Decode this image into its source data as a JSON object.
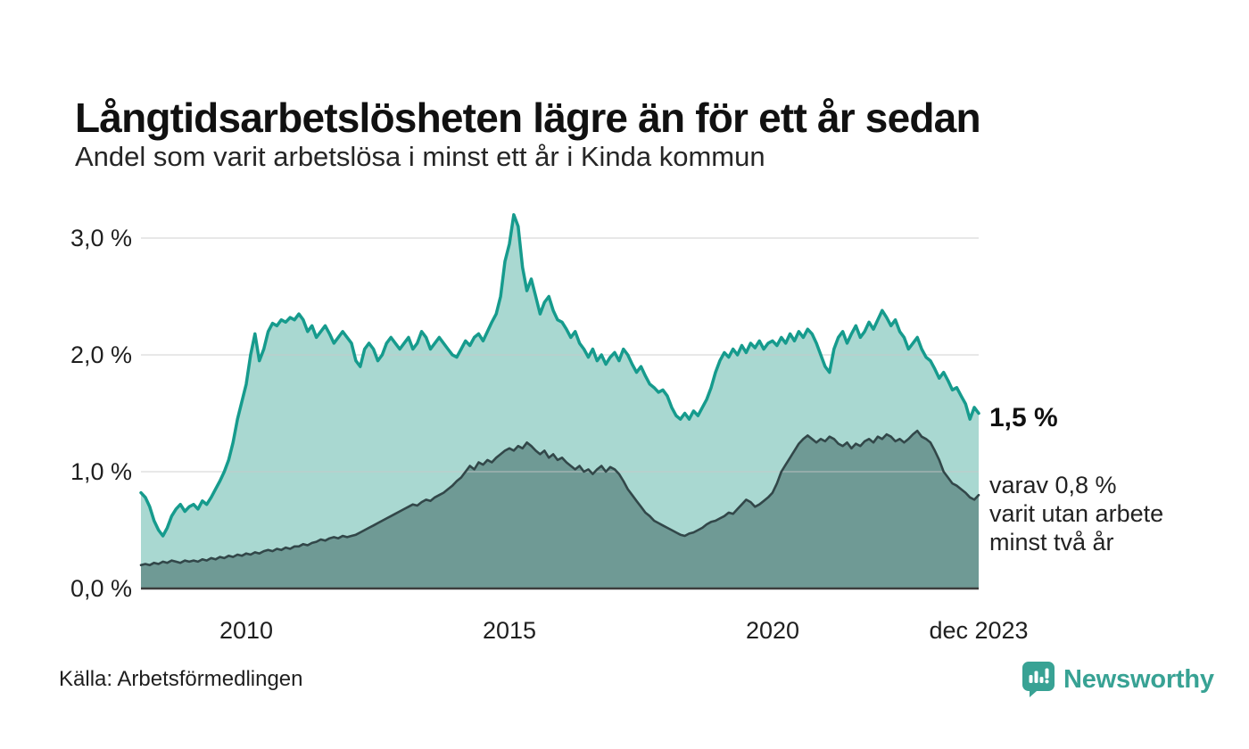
{
  "page": {
    "title": "Långtidsarbetslösheten lägre än för ett år sedan",
    "subtitle": "Andel som varit arbetslösa i minst ett år i Kinda kommun",
    "source": "Källa: Arbetsförmedlingen"
  },
  "brand": {
    "name": "Newsworthy",
    "color": "#38a294",
    "icon": "newsworthy-bar-chart-bubble-icon"
  },
  "annotation": {
    "value_label": "1,5 %",
    "detail_line1": "varav 0,8 %",
    "detail_line2": "varit utan arbete",
    "detail_line3": "minst två år"
  },
  "chart_data": {
    "type": "area",
    "title": "Långtidsarbetslösheten lägre än för ett år sedan",
    "subtitle": "Andel som varit arbetslösa i minst ett år i Kinda kommun",
    "x_unit": "month",
    "x_start": "2008-01",
    "x_end": "2023-12",
    "ylim": [
      0,
      3.3
    ],
    "grid": "horizontal",
    "legend_position": "none",
    "colors": {
      "grid_line": "#c9c9c9",
      "baseline": "#3d3d3d"
    },
    "y_ticks": [
      {
        "label": "3,0 %",
        "value": 3.0
      },
      {
        "label": "2,0 %",
        "value": 2.0
      },
      {
        "label": "1,0 %",
        "value": 1.0
      },
      {
        "label": "0,0 %",
        "value": 0.0
      }
    ],
    "x_ticks": [
      {
        "label": "2010",
        "month_index": 24
      },
      {
        "label": "2015",
        "month_index": 84
      },
      {
        "label": "2020",
        "month_index": 144
      },
      {
        "label": "dec 2023",
        "month_index": 191
      }
    ],
    "series": [
      {
        "name": "Andel arbetslösa minst ett år",
        "line_color": "#169b8d",
        "fill_color": "#a9d8d1",
        "latest_value_pct": 1.5,
        "values": [
          0.82,
          0.78,
          0.7,
          0.58,
          0.5,
          0.45,
          0.52,
          0.62,
          0.68,
          0.72,
          0.66,
          0.7,
          0.72,
          0.68,
          0.75,
          0.72,
          0.78,
          0.85,
          0.92,
          1.0,
          1.1,
          1.25,
          1.45,
          1.6,
          1.75,
          2.0,
          2.18,
          1.95,
          2.05,
          2.2,
          2.27,
          2.25,
          2.3,
          2.28,
          2.32,
          2.3,
          2.35,
          2.3,
          2.2,
          2.25,
          2.15,
          2.2,
          2.25,
          2.18,
          2.1,
          2.15,
          2.2,
          2.15,
          2.1,
          1.95,
          1.9,
          2.05,
          2.1,
          2.05,
          1.95,
          2.0,
          2.1,
          2.15,
          2.1,
          2.05,
          2.1,
          2.15,
          2.05,
          2.1,
          2.2,
          2.15,
          2.05,
          2.1,
          2.15,
          2.1,
          2.05,
          2.0,
          1.98,
          2.05,
          2.12,
          2.08,
          2.15,
          2.18,
          2.12,
          2.2,
          2.28,
          2.35,
          2.5,
          2.8,
          2.95,
          3.2,
          3.1,
          2.75,
          2.55,
          2.65,
          2.5,
          2.35,
          2.45,
          2.5,
          2.38,
          2.3,
          2.28,
          2.22,
          2.15,
          2.2,
          2.1,
          2.05,
          1.98,
          2.05,
          1.95,
          2.0,
          1.92,
          1.98,
          2.02,
          1.95,
          2.05,
          2.0,
          1.92,
          1.85,
          1.9,
          1.82,
          1.75,
          1.72,
          1.68,
          1.7,
          1.65,
          1.55,
          1.48,
          1.45,
          1.5,
          1.45,
          1.52,
          1.48,
          1.55,
          1.62,
          1.72,
          1.85,
          1.95,
          2.02,
          1.98,
          2.05,
          2.0,
          2.08,
          2.02,
          2.1,
          2.06,
          2.12,
          2.05,
          2.1,
          2.12,
          2.08,
          2.15,
          2.1,
          2.18,
          2.12,
          2.2,
          2.15,
          2.22,
          2.18,
          2.1,
          2.0,
          1.9,
          1.85,
          2.05,
          2.15,
          2.2,
          2.1,
          2.18,
          2.25,
          2.15,
          2.2,
          2.28,
          2.22,
          2.3,
          2.38,
          2.32,
          2.25,
          2.3,
          2.2,
          2.15,
          2.05,
          2.1,
          2.15,
          2.05,
          1.98,
          1.95,
          1.88,
          1.8,
          1.85,
          1.78,
          1.7,
          1.72,
          1.65,
          1.58,
          1.45,
          1.55,
          1.5
        ]
      },
      {
        "name": "varav utan arbete minst två år",
        "line_color": "#324749",
        "fill_color": "#6f9a95",
        "latest_value_pct": 0.8,
        "values": [
          0.2,
          0.21,
          0.2,
          0.22,
          0.21,
          0.23,
          0.22,
          0.24,
          0.23,
          0.22,
          0.24,
          0.23,
          0.24,
          0.23,
          0.25,
          0.24,
          0.26,
          0.25,
          0.27,
          0.26,
          0.28,
          0.27,
          0.29,
          0.28,
          0.3,
          0.29,
          0.31,
          0.3,
          0.32,
          0.33,
          0.32,
          0.34,
          0.33,
          0.35,
          0.34,
          0.36,
          0.36,
          0.38,
          0.37,
          0.39,
          0.4,
          0.42,
          0.41,
          0.43,
          0.44,
          0.43,
          0.45,
          0.44,
          0.45,
          0.46,
          0.48,
          0.5,
          0.52,
          0.54,
          0.56,
          0.58,
          0.6,
          0.62,
          0.64,
          0.66,
          0.68,
          0.7,
          0.72,
          0.71,
          0.74,
          0.76,
          0.75,
          0.78,
          0.8,
          0.82,
          0.85,
          0.88,
          0.92,
          0.95,
          1.0,
          1.05,
          1.02,
          1.08,
          1.06,
          1.1,
          1.08,
          1.12,
          1.15,
          1.18,
          1.2,
          1.18,
          1.22,
          1.2,
          1.25,
          1.22,
          1.18,
          1.15,
          1.18,
          1.12,
          1.15,
          1.1,
          1.12,
          1.08,
          1.05,
          1.02,
          1.05,
          1.0,
          1.02,
          0.98,
          1.02,
          1.05,
          1.0,
          1.04,
          1.02,
          0.98,
          0.92,
          0.85,
          0.8,
          0.75,
          0.7,
          0.65,
          0.62,
          0.58,
          0.56,
          0.54,
          0.52,
          0.5,
          0.48,
          0.46,
          0.45,
          0.47,
          0.48,
          0.5,
          0.52,
          0.55,
          0.57,
          0.58,
          0.6,
          0.62,
          0.65,
          0.64,
          0.68,
          0.72,
          0.76,
          0.74,
          0.7,
          0.72,
          0.75,
          0.78,
          0.82,
          0.9,
          1.0,
          1.06,
          1.12,
          1.18,
          1.24,
          1.28,
          1.31,
          1.28,
          1.25,
          1.28,
          1.26,
          1.3,
          1.28,
          1.24,
          1.22,
          1.25,
          1.2,
          1.24,
          1.22,
          1.26,
          1.28,
          1.25,
          1.3,
          1.28,
          1.32,
          1.3,
          1.26,
          1.28,
          1.25,
          1.28,
          1.32,
          1.35,
          1.3,
          1.28,
          1.25,
          1.18,
          1.1,
          1.0,
          0.95,
          0.9,
          0.88,
          0.85,
          0.82,
          0.78,
          0.76,
          0.8
        ]
      }
    ]
  }
}
